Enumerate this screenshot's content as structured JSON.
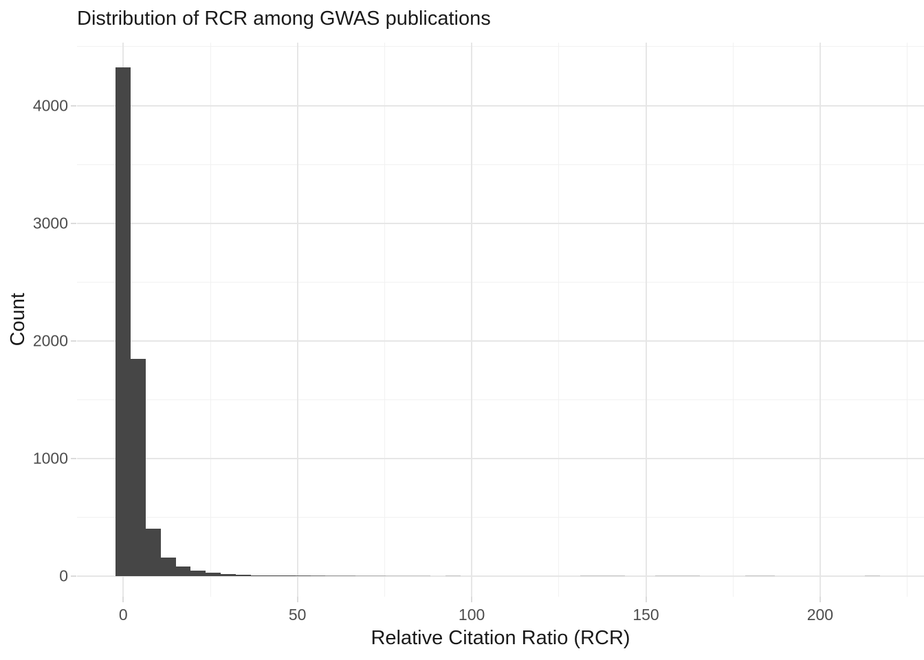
{
  "chart_data": {
    "type": "bar",
    "subtype": "histogram",
    "title": "Distribution of RCR among GWAS publications",
    "xlabel": "Relative Citation Ratio (RCR)",
    "ylabel": "Count",
    "bin_width": 4.3,
    "bins": [
      {
        "x": 0,
        "count": 4325
      },
      {
        "x": 4.3,
        "count": 1850
      },
      {
        "x": 8.6,
        "count": 405
      },
      {
        "x": 12.9,
        "count": 160
      },
      {
        "x": 17.2,
        "count": 82
      },
      {
        "x": 21.5,
        "count": 48
      },
      {
        "x": 25.8,
        "count": 30
      },
      {
        "x": 30.1,
        "count": 19
      },
      {
        "x": 34.4,
        "count": 13
      },
      {
        "x": 38.7,
        "count": 10
      },
      {
        "x": 43,
        "count": 8
      },
      {
        "x": 47.3,
        "count": 6
      },
      {
        "x": 51.6,
        "count": 5
      },
      {
        "x": 55.9,
        "count": 4
      },
      {
        "x": 60.2,
        "count": 3
      },
      {
        "x": 64.5,
        "count": 3
      },
      {
        "x": 68.8,
        "count": 2
      },
      {
        "x": 73.1,
        "count": 2
      },
      {
        "x": 77.4,
        "count": 1
      },
      {
        "x": 81.7,
        "count": 1
      },
      {
        "x": 86,
        "count": 1
      },
      {
        "x": 94.6,
        "count": 1
      },
      {
        "x": 133.3,
        "count": 1
      },
      {
        "x": 137.6,
        "count": 1
      },
      {
        "x": 141.9,
        "count": 1
      },
      {
        "x": 154.8,
        "count": 1
      },
      {
        "x": 159.1,
        "count": 1
      },
      {
        "x": 163.4,
        "count": 1
      },
      {
        "x": 180.6,
        "count": 1
      },
      {
        "x": 184.9,
        "count": 1
      },
      {
        "x": 215,
        "count": 1
      }
    ],
    "x_ticks": [
      0,
      50,
      100,
      150,
      200
    ],
    "y_ticks": [
      0,
      1000,
      2000,
      3000,
      4000
    ],
    "x_minor_ticks": [
      25,
      75,
      125,
      175,
      225
    ],
    "y_minor_ticks": [
      500,
      1500,
      2500,
      3500,
      4500
    ],
    "xlim": [
      -13.3,
      229.8
    ],
    "ylim": [
      -200,
      4535
    ],
    "grid": "major+minor",
    "legend": false,
    "colors": {
      "bar_fill": "#464646",
      "grid_major": "#e6e6e6",
      "grid_minor": "#f1f1f1",
      "tick_mark": "#dbdbdb",
      "tick_text": "#4d4d4d",
      "title_text": "#1a1a1a",
      "background": "#ffffff"
    }
  }
}
